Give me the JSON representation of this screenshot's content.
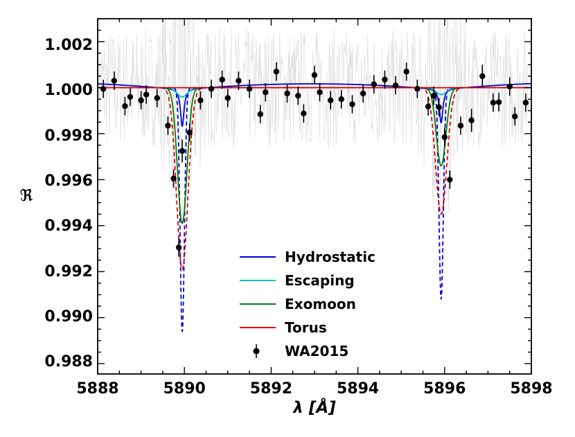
{
  "chart_data": {
    "type": "line",
    "xlabel": "λ [Å]",
    "ylabel": "ℜ",
    "xlim": [
      5888,
      5898
    ],
    "ylim": [
      0.98755,
      1.003
    ],
    "xticks": [
      5888,
      5890,
      5892,
      5894,
      5896,
      5898
    ],
    "xtick_labels": [
      "5888",
      "5890",
      "5892",
      "5894",
      "5896",
      "5898"
    ],
    "yticks": [
      0.988,
      0.99,
      0.992,
      0.994,
      0.996,
      0.998,
      1.0,
      1.002
    ],
    "ytick_labels": [
      "0.988",
      "0.990",
      "0.992",
      "0.994",
      "0.996",
      "0.998",
      "1.000",
      "1.002"
    ],
    "grid": false,
    "legend_position": "bottom-center",
    "lines": {
      "D2": 5889.95,
      "D1": 5895.92
    },
    "series": [
      {
        "name": "Hydrostatic",
        "color": "#0000dd",
        "style": "solid",
        "broad_depth": 0.0003,
        "broad_width": 1.6,
        "core_depth": [
          0.00165,
          0.0015
        ],
        "core_width": 0.05
      },
      {
        "name": "Escaping",
        "color": "#00c0c0",
        "style": "solid",
        "depth": [
          0.0004,
          0.0003
        ],
        "width": 0.12
      },
      {
        "name": "Exomoon",
        "color": "#008000",
        "style": "solid",
        "depth": [
          0.0059,
          0.0034
        ],
        "width": 0.11
      },
      {
        "name": "Torus",
        "color": "#dd0000",
        "style": "solid",
        "depth": [
          0.0,
          0.0
        ],
        "width": 0.1
      },
      {
        "name": "Hydrostatic-dashed",
        "color": "#0000dd",
        "style": "dashed",
        "depth": [
          0.0106,
          0.0092
        ],
        "width": 0.05
      },
      {
        "name": "Torus-dashed",
        "color": "#dd0000",
        "style": "dashed",
        "depth": [
          0.0079,
          0.0055
        ],
        "width": 0.13
      }
    ],
    "observed": {
      "name": "WA2015",
      "x": [
        5888.13,
        5888.38,
        5888.63,
        5888.75,
        5889.0,
        5889.12,
        5889.37,
        5889.62,
        5889.75,
        5889.87,
        5889.95,
        5890.12,
        5890.37,
        5890.62,
        5890.87,
        5891.0,
        5891.25,
        5891.5,
        5891.75,
        5891.87,
        5892.12,
        5892.37,
        5892.62,
        5892.75,
        5893.0,
        5893.12,
        5893.37,
        5893.62,
        5893.87,
        5894.12,
        5894.37,
        5894.62,
        5894.87,
        5895.12,
        5895.37,
        5895.62,
        5895.75,
        5895.87,
        5896.0,
        5896.12,
        5896.37,
        5896.62,
        5896.87,
        5897.12,
        5897.25,
        5897.5,
        5897.62,
        5897.87
      ],
      "y": [
        0.99995,
        1.0003,
        0.9992,
        0.9996,
        0.99945,
        0.9997,
        0.99955,
        0.99835,
        0.99605,
        0.99305,
        0.99725,
        0.99805,
        0.99945,
        0.99995,
        1.00035,
        0.99955,
        1.0003,
        0.99995,
        0.99885,
        0.9998,
        1.0007,
        0.99975,
        0.99965,
        0.99888,
        1.00055,
        0.9998,
        0.99945,
        0.9995,
        0.99928,
        0.99975,
        1.00015,
        1.00035,
        1.0001,
        1.0007,
        0.99995,
        0.99918,
        0.99965,
        0.99915,
        0.99785,
        0.996,
        0.99835,
        0.99858,
        1.0005,
        0.99935,
        0.99937,
        1.00005,
        0.99875,
        0.99935
      ],
      "yerr": [
        0.0004,
        0.0004,
        0.0004,
        0.0004,
        0.0004,
        0.0004,
        0.0004,
        0.0004,
        0.0004,
        0.0004,
        0.0005,
        0.0004,
        0.0004,
        0.0004,
        0.0004,
        0.0004,
        0.0004,
        0.0004,
        0.0004,
        0.0004,
        0.0004,
        0.0004,
        0.0004,
        0.0004,
        0.0004,
        0.0004,
        0.0004,
        0.0004,
        0.0004,
        0.0004,
        0.0004,
        0.0004,
        0.0004,
        0.0004,
        0.0004,
        0.0004,
        0.0004,
        0.0004,
        0.0004,
        0.0004,
        0.0004,
        0.0005,
        0.0005,
        0.0004,
        0.0004,
        0.0004,
        0.0004,
        0.0004
      ]
    }
  }
}
